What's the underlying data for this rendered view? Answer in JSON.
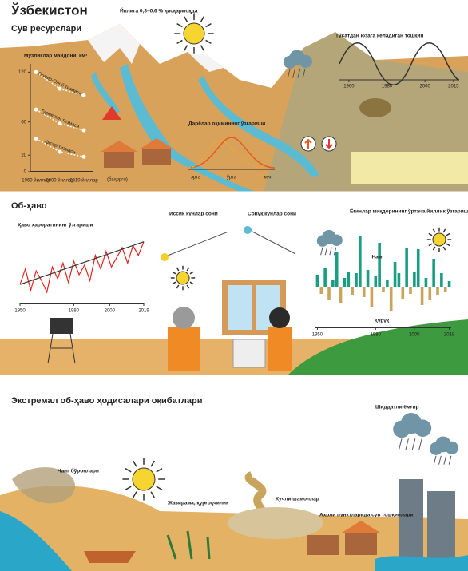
{
  "water": {
    "title": "Ўзбекистон",
    "subtitle": "Сув ресурслари",
    "glacier_note": "Йилига 0,3–0,6 % қисқармоқда",
    "spring_label": "(баҳорги)",
    "glacier_chart": {
      "type": "line",
      "title": "Музликлар майдони, км²",
      "categories": [
        "1960 йиллар",
        "2000 йиллар",
        "2010 йиллар"
      ],
      "series": [
        {
          "name": "Помир-Олой тизмаси",
          "values": [
            120,
            100,
            92
          ]
        },
        {
          "name": "Туркистон тизмаси",
          "values": [
            75,
            58,
            50
          ]
        },
        {
          "name": "Ҳисор тизмаси",
          "values": [
            40,
            24,
            18
          ]
        }
      ],
      "ylim": [
        0,
        130
      ],
      "yticks": [
        0,
        20,
        60,
        120
      ]
    },
    "river_chart": {
      "title": "Дарёлар оқимининг ўзгариши",
      "labels": [
        "эрта",
        "ўрта",
        "кеч"
      ]
    },
    "flood_chart": {
      "title": "Тўсатдан юзага келадиган тошқин",
      "xticks": [
        1960,
        1980,
        2000,
        2015
      ],
      "xlim": [
        1955,
        2018
      ]
    }
  },
  "weather": {
    "title": "Об-ҳаво",
    "temperature_chart": {
      "type": "line",
      "title": "Ҳаво ҳароратининг ўзгариши",
      "color": "#e8231e",
      "x": [
        1950,
        1953,
        1956,
        1959,
        1962,
        1965,
        1968,
        1971,
        1974,
        1977,
        1980,
        1983,
        1986,
        1989,
        1992,
        1995,
        1998,
        2001,
        2004,
        2007,
        2010,
        2013,
        2016,
        2019
      ],
      "values": [
        -0.6,
        0.2,
        -0.9,
        0.1,
        -0.4,
        -1.0,
        0.3,
        -0.3,
        0.5,
        -0.5,
        0.6,
        -0.1,
        0.4,
        -0.4,
        0.9,
        0.2,
        1.1,
        0.3,
        0.8,
        1.3,
        0.5,
        1.4,
        0.9,
        1.6
      ],
      "xlim": [
        1950,
        2019
      ],
      "xticks": [
        1950,
        1980,
        2000,
        2019
      ],
      "ylim": [
        -1.5,
        2
      ]
    },
    "warm_days": "Иссиқ кунлар сони",
    "cold_days": "Совуқ кунлар сони",
    "precip_chart": {
      "type": "bar",
      "title": "Ёғинлар миқдорининг ўртача йиллик ўзгариши",
      "color": "#1a9e82",
      "negative_color": "#c9a45c",
      "x": [
        1950,
        1952,
        1954,
        1956,
        1958,
        1960,
        1962,
        1964,
        1966,
        1968,
        1970,
        1972,
        1974,
        1976,
        1978,
        1980,
        1982,
        1984,
        1986,
        1988,
        1990,
        1992,
        1994,
        1996,
        1998,
        2000,
        2002,
        2004,
        2006,
        2008,
        2010,
        2012,
        2014,
        2016,
        2018
      ],
      "values": [
        0.8,
        -0.4,
        1.2,
        -0.8,
        0.5,
        2.2,
        -1.0,
        0.6,
        1.0,
        -0.5,
        0.9,
        3.2,
        -0.6,
        1.1,
        -1.2,
        0.7,
        2.8,
        -0.3,
        0.5,
        -1.5,
        1.6,
        0.9,
        -0.7,
        2.5,
        -0.4,
        1.0,
        2.4,
        -1.1,
        0.6,
        -0.8,
        1.8,
        -0.5,
        0.9,
        -0.3,
        0.4
      ],
      "xlim": [
        1949,
        2019
      ],
      "xticks": [
        1950,
        1980,
        2000,
        2018
      ],
      "ylim": [
        -2,
        3.5
      ],
      "wet_label": "Нам",
      "dry_label": "Қуруқ"
    }
  },
  "extremes": {
    "title": "Экстремал об-ҳаво ҳодисалари оқибатлари",
    "dust_storms": "Чанг бўронлари",
    "heat_drought": "Жазирама, қурғоқчилик",
    "strong_winds": "Кучли шамоллар",
    "settlement_floods": "Аҳоли пунктларида сув тошқинлари",
    "heavy_rain": "Шиддатли ёмғир"
  }
}
